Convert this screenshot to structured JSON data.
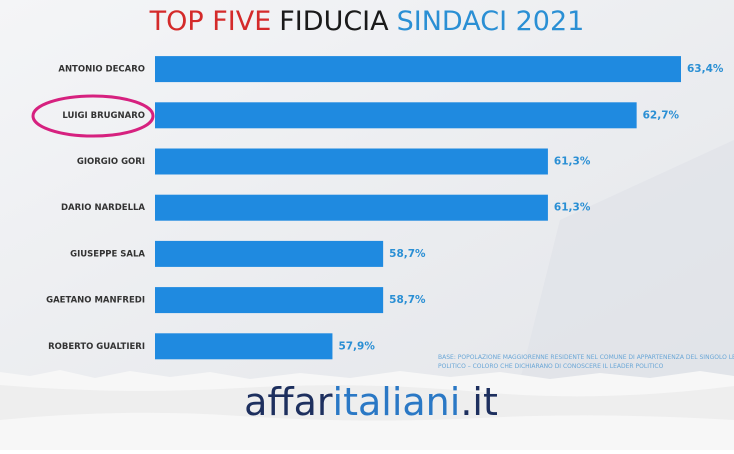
{
  "chart_data": {
    "type": "bar",
    "orientation": "horizontal",
    "title_parts": [
      {
        "text": "TOP FIVE",
        "color": "#d42a2a"
      },
      {
        "text": "FIDUCIA",
        "color": "#1a1a1a"
      },
      {
        "text": "SINDACI 2021",
        "color": "#2a8fd4"
      }
    ],
    "categories": [
      "ANTONIO DECARO",
      "LUIGI BRUGNARO",
      "GIORGIO GORI",
      "DARIO NARDELLA",
      "GIUSEPPE SALA",
      "GAETANO MANFREDI",
      "ROBERTO GUALTIERI"
    ],
    "values": [
      63.4,
      62.7,
      61.3,
      61.3,
      58.7,
      58.7,
      57.9
    ],
    "value_labels": [
      "63,4%",
      "62,7%",
      "61,3%",
      "61,3%",
      "58,7%",
      "58,7%",
      "57,9%"
    ],
    "color": "#1f8ae0",
    "xlim": [
      55.1,
      63.4
    ],
    "note": "BASE: POPOLAZIONE MAGGIORENNE RESIDENTE NEL COMUNE DI APPARTENENZA DEL SINGOLO LEADER POLITICO – COLORO CHE DICHIARANO DI CONOSCERE IL LEADER POLITICO"
  },
  "logo": {
    "parts": [
      {
        "text": "affar",
        "color": "#1d2f5e"
      },
      {
        "text": "italiani",
        "color": "#2a78c5"
      },
      {
        "text": ".it",
        "color": "#1d2f5e"
      }
    ]
  }
}
